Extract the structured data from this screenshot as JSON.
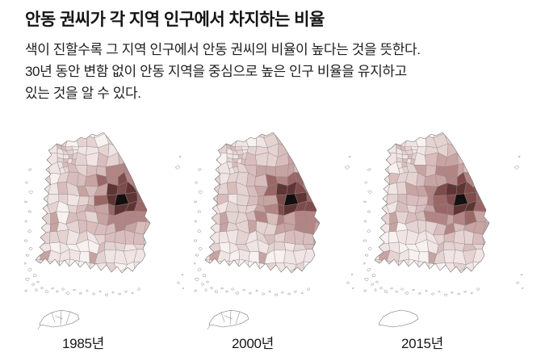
{
  "header": {
    "title": "안동 권씨가 각 지역 인구에서 차지하는 비율",
    "description_lines": [
      "색이 진할수록 그 지역 인구에서 안동 권씨의 비율이 높다는 것을 뜻한다.",
      "30년 동안 변함 없이 안동 지역을 중심으로 높은 인구 비율을 유지하고",
      "있는 것을 알 수 있다."
    ]
  },
  "maps": [
    {
      "label": "1985년"
    },
    {
      "label": "2000년"
    },
    {
      "label": "2015년"
    }
  ],
  "palette": {
    "scale": [
      "#f7f1f0",
      "#f0e5e4",
      "#e5d3d2",
      "#d8bdbc",
      "#c7a3a2",
      "#b28584",
      "#9a6766",
      "#7e4c4b",
      "#5f3534",
      "#151010"
    ],
    "stroke": "#8d8888",
    "outline": "#6e6a6a",
    "background": "#ffffff",
    "text": "#141414"
  },
  "chart_data": {
    "type": "heatmap",
    "subtype": "choropleth small multiples (South Korea districts)",
    "title": "안동 권씨가 각 지역 인구에서 차지하는 비율",
    "note": "색이 진할수록 그 지역 인구에서 안동 권씨의 비율이 높다는 것을 뜻한다. 30년 동안 변함 없이 안동 지역을 중심으로 높은 인구 비율을 유지하고 있는 것을 알 수 있다.",
    "panels": [
      "1985년",
      "2000년",
      "2015년"
    ],
    "highlight_region": "안동 (경북 북부, 가장 진한 색)",
    "color_scale": {
      "low": "#f7f1f0",
      "high": "#151010",
      "meaning": "안동 권씨 인구 비율 (진할수록 높음)"
    },
    "legend_position": "none",
    "grid": false
  }
}
